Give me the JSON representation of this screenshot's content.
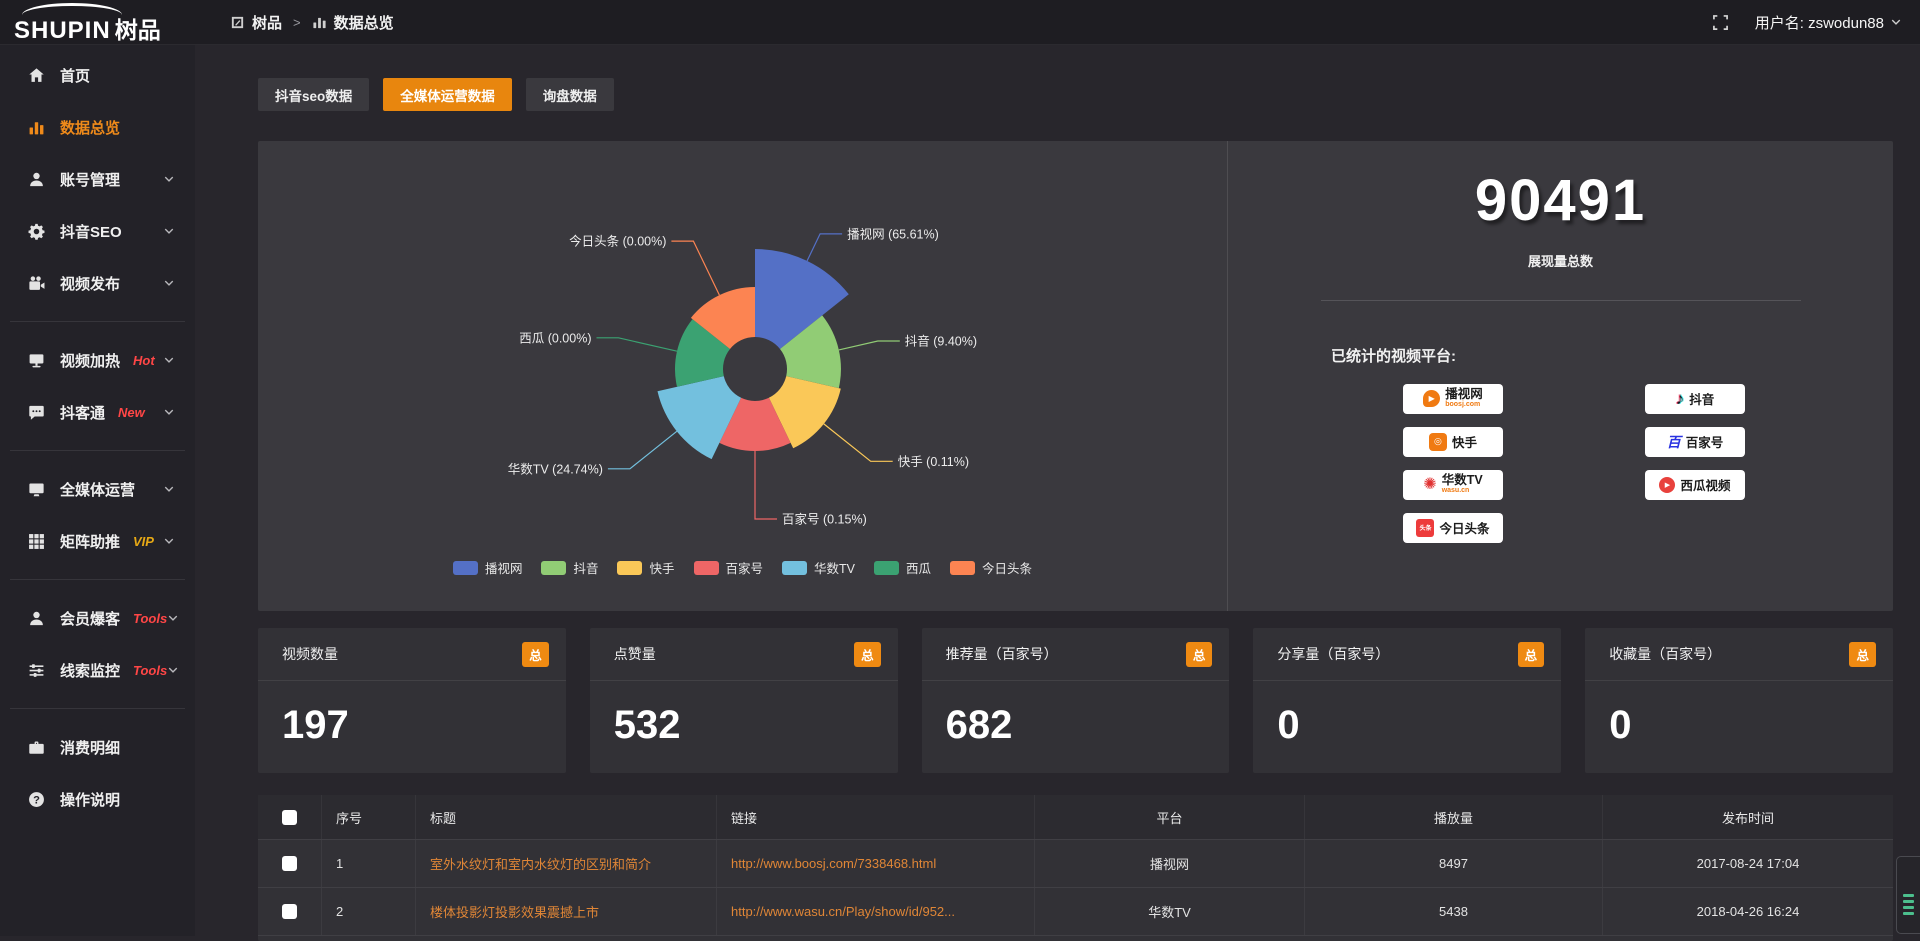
{
  "topbar": {
    "logo_en": "SHUPIN",
    "logo_cn": "树品",
    "breadcrumb": [
      {
        "label": "树品"
      },
      {
        "label": "数据总览"
      }
    ],
    "breadcrumb_separator": ">",
    "username": "用户名: zswodun88"
  },
  "sidebar": {
    "items": [
      {
        "label": "首页",
        "icon": "home-icon",
        "chevron": false
      },
      {
        "label": "数据总览",
        "icon": "bar-chart-icon",
        "active": true,
        "chevron": false
      },
      {
        "label": "账号管理",
        "icon": "user-icon",
        "chevron": true
      },
      {
        "label": "抖音SEO",
        "icon": "gear-icon",
        "chevron": true
      },
      {
        "label": "视频发布",
        "icon": "video-camera-icon",
        "chevron": true
      },
      {
        "divider": true
      },
      {
        "label": "视频加热",
        "icon": "monitor-icon",
        "badge": "Hot",
        "badge_color": "#ff4646",
        "chevron": true
      },
      {
        "label": "抖客通",
        "icon": "comment-icon",
        "badge": "New",
        "badge_color": "#ff4646",
        "chevron": true
      },
      {
        "divider": true
      },
      {
        "label": "全媒体运营",
        "icon": "display-icon",
        "chevron": true
      },
      {
        "label": "矩阵助推",
        "icon": "grid-icon",
        "badge": "VIP",
        "badge_color": "#e7a915",
        "chevron": true
      },
      {
        "divider": true
      },
      {
        "label": "会员爆客",
        "icon": "person-icon",
        "badge": "Tools",
        "badge_color": "#ff4646",
        "chevron": true
      },
      {
        "label": "线索监控",
        "icon": "sliders-icon",
        "badge": "Tools",
        "badge_color": "#ff4646",
        "chevron": true
      },
      {
        "divider": true
      },
      {
        "label": "消费明细",
        "icon": "briefcase-icon",
        "chevron": false
      },
      {
        "label": "操作说明",
        "icon": "question-icon",
        "chevron": false
      }
    ]
  },
  "tabs": [
    {
      "label": "抖音seo数据",
      "active": false
    },
    {
      "label": "全媒体运营数据",
      "active": true
    },
    {
      "label": "询盘数据",
      "active": false
    }
  ],
  "chart_data": {
    "type": "pie",
    "subtype": "nightingale-rose",
    "categories": [
      "播视网",
      "抖音",
      "快手",
      "百家号",
      "华数TV",
      "西瓜",
      "今日头条"
    ],
    "values_percent": [
      65.61,
      9.4,
      0.11,
      0.15,
      24.74,
      0.0,
      0.0
    ],
    "total": 90491,
    "colors": [
      "#5470c6",
      "#91cc75",
      "#fac858",
      "#ee6666",
      "#73c0de",
      "#3ba272",
      "#fc8452"
    ],
    "legend_position": "bottom",
    "inner_radius": 32,
    "display_radii": [
      120,
      86,
      88,
      82,
      100,
      80,
      82
    ],
    "label_line_lengths": [
      30,
      40,
      60,
      68,
      60,
      60,
      60
    ]
  },
  "summary": {
    "total_value": "90491",
    "total_label": "展现量总数",
    "platforms_label": "已统计的视频平台:",
    "platforms": [
      {
        "name": "播视网",
        "sub": "boosj.com",
        "logo": "boosj-logo"
      },
      {
        "name": "抖音",
        "logo": "douyin-logo"
      },
      {
        "name": "快手",
        "logo": "kuaishou-logo"
      },
      {
        "name": "百家号",
        "logo": "baijiahao-logo"
      },
      {
        "name": "华数TV",
        "sub": "wasu.cn",
        "logo": "wasu-logo"
      },
      {
        "name": "西瓜视频",
        "logo": "xigua-logo"
      },
      {
        "name": "今日头条",
        "logo": "toutiao-logo"
      }
    ]
  },
  "stat_cards": [
    {
      "label": "视频数量",
      "badge": "总",
      "value": "197"
    },
    {
      "label": "点赞量",
      "badge": "总",
      "value": "532"
    },
    {
      "label": "推荐量（百家号）",
      "badge": "总",
      "value": "682"
    },
    {
      "label": "分享量（百家号）",
      "badge": "总",
      "value": "0"
    },
    {
      "label": "收藏量（百家号）",
      "badge": "总",
      "value": "0"
    }
  ],
  "table": {
    "headers": [
      "序号",
      "标题",
      "链接",
      "平台",
      "播放量",
      "发布时间"
    ],
    "rows": [
      {
        "index": "1",
        "title": "室外水纹灯和室内水纹灯的区别和简介",
        "link": "http://www.boosj.com/7338468.html",
        "platform": "播视网",
        "views": "8497",
        "time": "2017-08-24 17:04"
      },
      {
        "index": "2",
        "title": "楼体投影灯投影效果震撼上市",
        "link": "http://www.wasu.cn/Play/show/id/952...",
        "platform": "华数TV",
        "views": "5438",
        "time": "2018-04-26 16:24"
      }
    ]
  }
}
